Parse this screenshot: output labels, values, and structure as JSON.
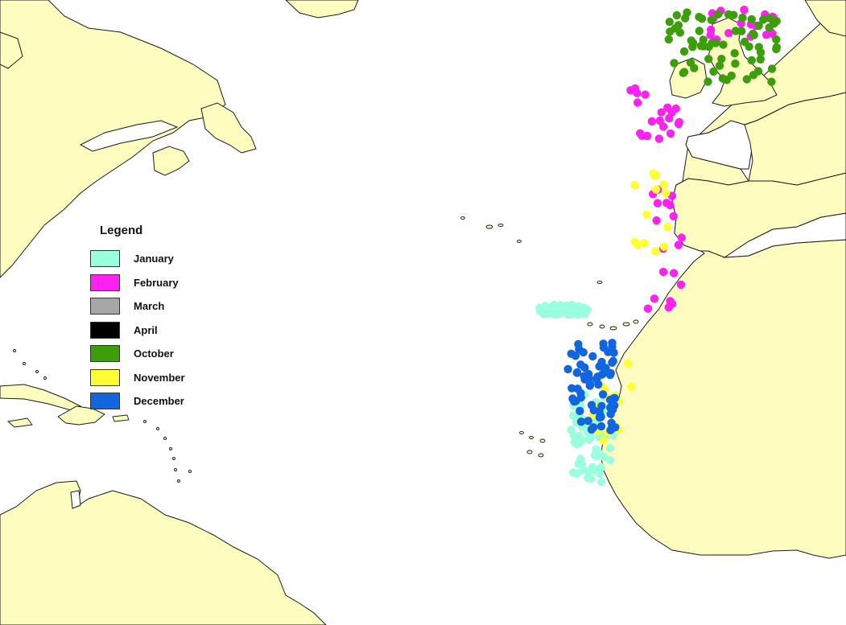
{
  "legend": {
    "title": "Legend",
    "items": [
      {
        "label": "January",
        "color": "#99ffdd"
      },
      {
        "label": "February",
        "color": "#ff22ee"
      },
      {
        "label": "March",
        "color": "#a6a6a6"
      },
      {
        "label": "April",
        "color": "#000000"
      },
      {
        "label": "October",
        "color": "#3d9e0b"
      },
      {
        "label": "November",
        "color": "#ffff33"
      },
      {
        "label": "December",
        "color": "#1166e0"
      }
    ]
  },
  "map": {
    "region": "North Atlantic Ocean",
    "land_color": "#fefcbe",
    "water_color": "#ffffff",
    "point_groups": [
      {
        "month": "January",
        "count": 120
      },
      {
        "month": "February",
        "count": 58
      },
      {
        "month": "October",
        "count": 68
      },
      {
        "month": "November",
        "count": 28
      },
      {
        "month": "December",
        "count": 70
      }
    ]
  }
}
